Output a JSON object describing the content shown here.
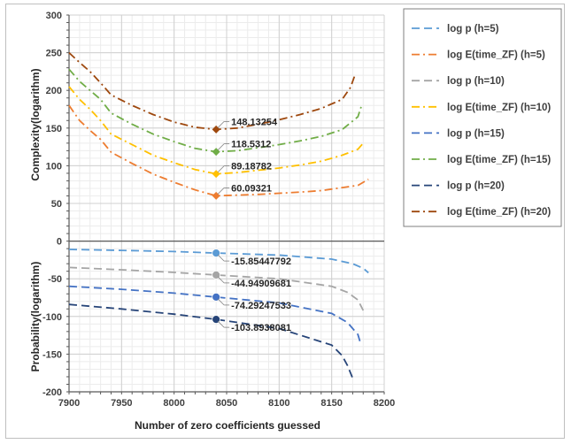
{
  "chart_data": {
    "type": "line",
    "xlabel": "Number of zero coefficients guessed",
    "ylabel_top": "Complexity(logarithm)",
    "ylabel_bottom": "Probability(logarithm)",
    "xlim": [
      7900,
      8200
    ],
    "ylim": [
      -200,
      300
    ],
    "x_ticks": [
      "7900",
      "7950",
      "8000",
      "8050",
      "8100",
      "8150",
      "8200"
    ],
    "y_ticks": [
      "300",
      "250",
      "200",
      "150",
      "100",
      "50",
      "0",
      "-50",
      "-100",
      "-150",
      "-200"
    ],
    "grid": true,
    "legend_position": "right",
    "series": [
      {
        "name": "log p (h=5)",
        "color": "#5b9bd5",
        "dash": "long-dash",
        "x": [
          7900,
          7950,
          8000,
          8040,
          8100,
          8150,
          8170,
          8180,
          8185
        ],
        "y": [
          -11,
          -12.3,
          -13.8,
          -15.85,
          -18.5,
          -24,
          -30,
          -36,
          -42
        ],
        "marker": {
          "x": 8040,
          "y": -15.85447792,
          "label": "-15.85447792"
        }
      },
      {
        "name": "log E(time_ZF) (h=5)",
        "color": "#ed7d31",
        "dash": "dash-dot",
        "x": [
          7900,
          7910,
          7920,
          7930,
          7940,
          7960,
          7980,
          8000,
          8020,
          8040,
          8060,
          8080,
          8100,
          8120,
          8140,
          8160,
          8175,
          8185
        ],
        "y": [
          180,
          160,
          147,
          135,
          118,
          103,
          89,
          78,
          68,
          60.1,
          61,
          62,
          63.5,
          65,
          67,
          71,
          74,
          82
        ],
        "marker": {
          "x": 8040,
          "y": 60.09321,
          "label": "60.09321"
        }
      },
      {
        "name": "log p (h=10)",
        "color": "#a5a5a5",
        "dash": "long-dash",
        "x": [
          7900,
          7950,
          8000,
          8040,
          8100,
          8150,
          8165,
          8175,
          8180
        ],
        "y": [
          -35,
          -38,
          -41.5,
          -44.95,
          -50,
          -60,
          -68,
          -78,
          -92
        ],
        "marker": {
          "x": 8040,
          "y": -44.94909681,
          "label": "-44.94909681"
        }
      },
      {
        "name": "log E(time_ZF) (h=10)",
        "color": "#ffc000",
        "dash": "dash-dot",
        "x": [
          7900,
          7910,
          7920,
          7930,
          7940,
          7960,
          7980,
          8000,
          8020,
          8040,
          8060,
          8080,
          8100,
          8120,
          8140,
          8160,
          8175,
          8180
        ],
        "y": [
          205,
          188,
          175,
          160,
          142,
          128,
          114,
          104,
          95,
          89.2,
          91,
          94,
          97,
          101,
          106,
          114,
          122,
          130
        ],
        "marker": {
          "x": 8040,
          "y": 89.18782,
          "label": "89.18782"
        }
      },
      {
        "name": "log p (h=15)",
        "color": "#4472c4",
        "dash": "long-dash",
        "x": [
          7900,
          7950,
          8000,
          8040,
          8100,
          8150,
          8165,
          8175,
          8178
        ],
        "y": [
          -60,
          -64,
          -69,
          -74.29,
          -82,
          -96,
          -108,
          -124,
          -138
        ],
        "marker": {
          "x": 8040,
          "y": -74.29247533,
          "label": "-74.29247533"
        }
      },
      {
        "name": "log E(time_ZF) (h=15)",
        "color": "#70ad47",
        "dash": "dash-dot",
        "x": [
          7900,
          7910,
          7920,
          7930,
          7940,
          7960,
          7980,
          8000,
          8020,
          8040,
          8060,
          8080,
          8100,
          8120,
          8140,
          8160,
          8175,
          8178
        ],
        "y": [
          228,
          212,
          200,
          188,
          170,
          155,
          142,
          132,
          123,
          118.5,
          120,
          124,
          128,
          133,
          139,
          148,
          165,
          178
        ],
        "marker": {
          "x": 8040,
          "y": 118.5312,
          "label": "118.5312"
        }
      },
      {
        "name": "log p (h=20)",
        "color": "#264478",
        "dash": "long-dash",
        "x": [
          7900,
          7950,
          8000,
          8040,
          8100,
          8150,
          8160,
          8165,
          8170
        ],
        "y": [
          -84,
          -90,
          -97,
          -103.89,
          -116,
          -138,
          -152,
          -165,
          -182
        ],
        "marker": {
          "x": 8040,
          "y": -103.8938081,
          "label": "-103.8938081"
        }
      },
      {
        "name": "log E(time_ZF) (h=20)",
        "color": "#9e480e",
        "dash": "dash-dot",
        "x": [
          7900,
          7910,
          7920,
          7930,
          7940,
          7960,
          7980,
          8000,
          8020,
          8040,
          8060,
          8080,
          8100,
          8120,
          8140,
          8160,
          8168,
          8172
        ],
        "y": [
          250,
          237,
          225,
          210,
          194,
          180,
          168,
          158,
          151,
          148.1,
          150,
          155,
          161,
          168,
          176,
          188,
          204,
          220
        ],
        "marker": {
          "x": 8040,
          "y": 148.13254,
          "label": "148.13254"
        }
      }
    ]
  }
}
